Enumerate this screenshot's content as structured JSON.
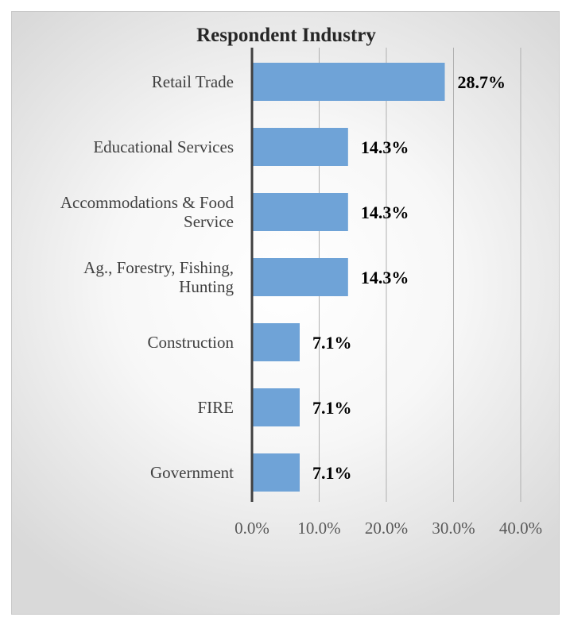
{
  "chart_data": {
    "type": "bar",
    "orientation": "horizontal",
    "title": "Respondent Industry",
    "categories": [
      [
        "Retail Trade"
      ],
      [
        "Educational Services"
      ],
      [
        "Accommodations & Food",
        "Service"
      ],
      [
        "Ag., Forestry, Fishing,",
        "Hunting"
      ],
      [
        "Construction"
      ],
      [
        "FIRE"
      ],
      [
        "Government"
      ]
    ],
    "values": [
      28.7,
      14.3,
      14.3,
      14.3,
      7.1,
      7.1,
      7.1
    ],
    "data_labels": [
      "28.7%",
      "14.3%",
      "14.3%",
      "14.3%",
      "7.1%",
      "7.1%",
      "7.1%"
    ],
    "x_ticks": [
      "0.0%",
      "10.0%",
      "20.0%",
      "30.0%",
      "40.0%"
    ],
    "xlim": [
      0,
      40
    ],
    "xlabel": "",
    "ylabel": "",
    "grid": true,
    "bar_color": "#6fa3d7",
    "gridline_color": "#b0b0b0",
    "axis_color": "#404040"
  }
}
